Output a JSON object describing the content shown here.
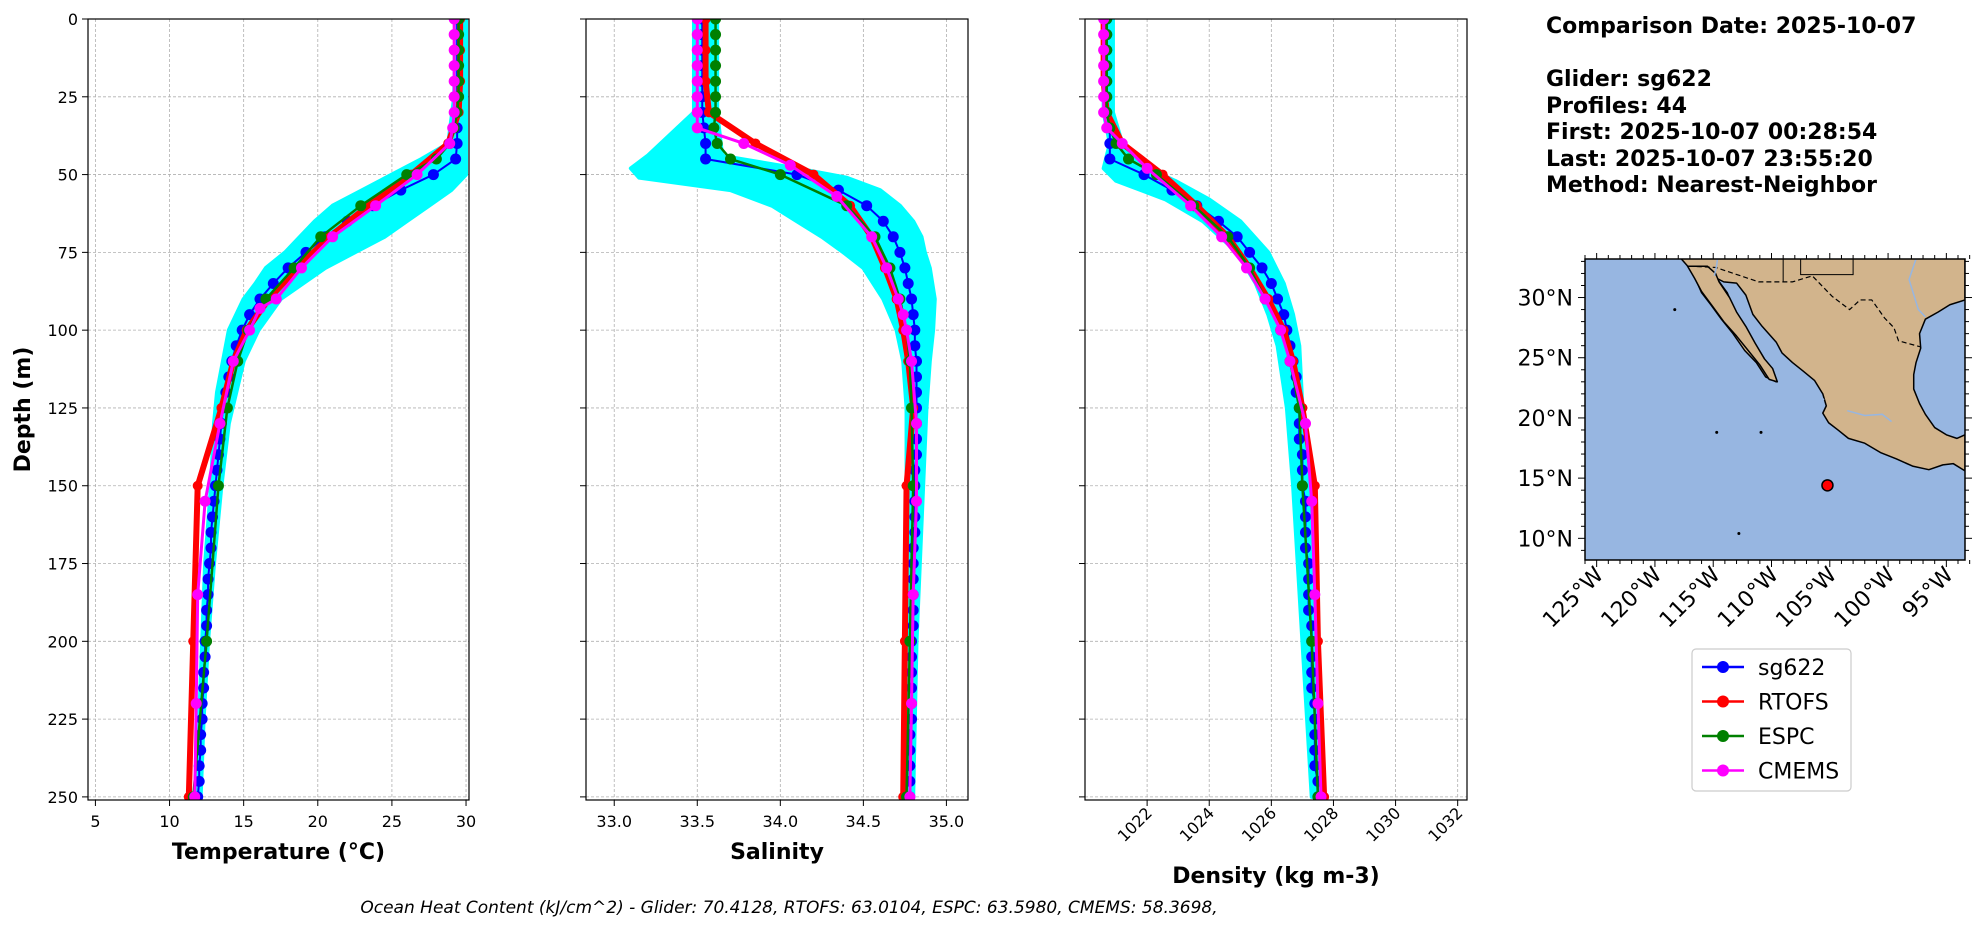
{
  "info": {
    "comparison_date": "Comparison Date: 2025-10-07",
    "glider": "Glider: sg622",
    "profiles": "Profiles: 44",
    "first": "First: 2025-10-07 00:28:54",
    "last": "Last: 2025-10-07 23:55:20",
    "method": "Method: Nearest-Neighbor"
  },
  "footer": "Ocean Heat Content (kJ/cm^2) - Glider: 70.4128,  RTOFS: 63.0104,  ESPC: 63.5980,  CMEMS: 58.3698,",
  "colors": {
    "glider_raw": "#00ffff",
    "sg622": "#0000ff",
    "RTOFS": "#ff0000",
    "ESPC": "#008000",
    "CMEMS": "#ff00ff",
    "ocean": "#97b6e1",
    "land": "#d2b48c"
  },
  "chart_data": [
    {
      "type": "line",
      "name": "temperature",
      "xlabel": "Temperature (°C)",
      "ylabel": "Depth (m)",
      "xlim": [
        4.5,
        30.2
      ],
      "ylim": [
        251,
        0
      ],
      "xticks": [
        5,
        10,
        15,
        20,
        25,
        30
      ],
      "yticks": [
        0,
        25,
        50,
        75,
        100,
        125,
        150,
        175,
        200,
        225,
        250
      ],
      "grid": true,
      "raw_band": {
        "depth": [
          0,
          25,
          40,
          45,
          50,
          55,
          60,
          65,
          70,
          75,
          80,
          85,
          90,
          100,
          110,
          120,
          130,
          150,
          175,
          200,
          225,
          250
        ],
        "xmin": [
          29.3,
          29.2,
          28.8,
          27.0,
          25.0,
          23.0,
          21.0,
          19.8,
          18.8,
          17.8,
          16.5,
          15.8,
          15.0,
          14.0,
          13.6,
          13.2,
          13.0,
          12.8,
          12.4,
          12.2,
          12.0,
          11.8
        ],
        "xmax": [
          30.0,
          30.0,
          30.0,
          30.0,
          30.0,
          29.0,
          27.5,
          26.0,
          24.5,
          22.5,
          20.5,
          19.0,
          17.5,
          16.0,
          15.0,
          14.5,
          14.0,
          13.5,
          13.0,
          12.6,
          12.3,
          12.1
        ]
      },
      "series": [
        {
          "name": "sg622",
          "depth": [
            0,
            5,
            10,
            15,
            20,
            25,
            30,
            35,
            40,
            45,
            50,
            55,
            60,
            65,
            70,
            75,
            80,
            85,
            90,
            95,
            100,
            105,
            110,
            115,
            120,
            125,
            130,
            135,
            140,
            145,
            150,
            155,
            160,
            165,
            170,
            175,
            180,
            185,
            190,
            195,
            200,
            205,
            210,
            215,
            220,
            225,
            230,
            235,
            240,
            245,
            250
          ],
          "values": [
            29.4,
            29.4,
            29.4,
            29.4,
            29.4,
            29.4,
            29.4,
            29.4,
            29.4,
            29.3,
            27.8,
            25.6,
            23.7,
            22.0,
            20.5,
            19.2,
            18.0,
            17.0,
            16.1,
            15.4,
            14.9,
            14.5,
            14.2,
            14.0,
            13.8,
            13.6,
            13.5,
            13.4,
            13.3,
            13.2,
            13.1,
            13.0,
            12.9,
            12.8,
            12.8,
            12.7,
            12.6,
            12.6,
            12.5,
            12.5,
            12.4,
            12.4,
            12.3,
            12.3,
            12.2,
            12.2,
            12.1,
            12.1,
            12.0,
            12.0,
            11.9
          ]
        },
        {
          "name": "RTOFS",
          "depth": [
            0,
            10,
            20,
            30,
            40,
            50,
            60,
            70,
            80,
            90,
            100,
            110,
            125,
            150,
            200,
            250
          ],
          "values": [
            29.6,
            29.6,
            29.6,
            29.5,
            28.8,
            26.3,
            23.4,
            20.8,
            18.6,
            16.7,
            15.2,
            14.3,
            13.5,
            11.9,
            11.6,
            11.3
          ]
        },
        {
          "name": "ESPC",
          "depth": [
            0,
            5,
            10,
            15,
            20,
            25,
            30,
            35,
            40,
            45,
            50,
            60,
            70,
            80,
            90,
            100,
            110,
            125,
            150,
            200,
            250
          ],
          "values": [
            29.5,
            29.5,
            29.5,
            29.5,
            29.5,
            29.5,
            29.4,
            29.2,
            28.9,
            28.0,
            26.0,
            22.9,
            20.2,
            18.4,
            16.5,
            15.3,
            14.6,
            13.9,
            13.3,
            12.5,
            11.6
          ]
        },
        {
          "name": "CMEMS",
          "depth": [
            0,
            5,
            10,
            15,
            20,
            25,
            30,
            35,
            40,
            50,
            60,
            70,
            80,
            90,
            93,
            100,
            110,
            130,
            155,
            185,
            220,
            250
          ],
          "values": [
            29.2,
            29.2,
            29.2,
            29.2,
            29.2,
            29.2,
            29.2,
            29.1,
            28.9,
            26.7,
            23.9,
            21.0,
            18.9,
            17.2,
            16.1,
            15.4,
            14.3,
            13.4,
            12.4,
            11.9,
            11.8,
            11.7
          ]
        }
      ]
    },
    {
      "type": "line",
      "name": "salinity",
      "xlabel": "Salinity",
      "xlim": [
        32.83,
        35.13
      ],
      "ylim": [
        251,
        0
      ],
      "xticks": [
        33.0,
        33.5,
        34.0,
        34.5,
        35.0
      ],
      "xticklabels": [
        "33.0",
        "33.5",
        "34.0",
        "34.5",
        "35.0"
      ],
      "yticks": [
        0,
        25,
        50,
        75,
        100,
        125,
        150,
        175,
        200,
        225,
        250
      ],
      "grid": true,
      "raw_band": {
        "depth": [
          0,
          30,
          44,
          48,
          51,
          55,
          60,
          65,
          70,
          75,
          80,
          90,
          100,
          110,
          125,
          150,
          200,
          250
        ],
        "xmin": [
          33.48,
          33.48,
          33.2,
          33.1,
          33.15,
          33.7,
          33.95,
          34.1,
          34.25,
          34.38,
          34.5,
          34.62,
          34.7,
          34.74,
          34.76,
          34.76,
          34.75,
          34.74
        ],
        "xmax": [
          33.62,
          33.62,
          33.65,
          34.1,
          34.4,
          34.6,
          34.72,
          34.8,
          34.85,
          34.87,
          34.9,
          34.93,
          34.92,
          34.9,
          34.88,
          34.86,
          34.82,
          34.8
        ]
      },
      "series": [
        {
          "name": "sg622",
          "depth": [
            0,
            5,
            10,
            15,
            20,
            25,
            30,
            35,
            40,
            45,
            50,
            55,
            60,
            65,
            70,
            75,
            80,
            85,
            90,
            95,
            100,
            105,
            110,
            115,
            120,
            125,
            130,
            135,
            140,
            145,
            150,
            155,
            160,
            165,
            170,
            175,
            180,
            185,
            190,
            195,
            200,
            205,
            210,
            215,
            220,
            225,
            230,
            235,
            240,
            245,
            250
          ],
          "values": [
            33.53,
            33.53,
            33.53,
            33.53,
            33.53,
            33.53,
            33.53,
            33.54,
            33.55,
            33.55,
            34.1,
            34.35,
            34.52,
            34.62,
            34.68,
            34.72,
            34.75,
            34.77,
            34.79,
            34.8,
            34.81,
            34.81,
            34.82,
            34.82,
            34.82,
            34.82,
            34.82,
            34.82,
            34.82,
            34.81,
            34.81,
            34.81,
            34.81,
            34.81,
            34.8,
            34.8,
            34.8,
            34.8,
            34.8,
            34.8,
            34.79,
            34.79,
            34.79,
            34.79,
            34.79,
            34.79,
            34.78,
            34.78,
            34.78,
            34.78,
            34.78
          ]
        },
        {
          "name": "RTOFS",
          "depth": [
            0,
            10,
            20,
            30,
            40,
            50,
            60,
            70,
            80,
            90,
            100,
            110,
            125,
            150,
            200,
            250
          ],
          "values": [
            33.55,
            33.55,
            33.55,
            33.57,
            33.85,
            34.2,
            34.42,
            34.55,
            34.63,
            34.7,
            34.74,
            34.77,
            34.8,
            34.76,
            34.75,
            34.74
          ]
        },
        {
          "name": "ESPC",
          "depth": [
            0,
            5,
            10,
            15,
            20,
            25,
            30,
            35,
            40,
            45,
            50,
            60,
            70,
            80,
            90,
            100,
            110,
            125,
            150,
            200,
            250
          ],
          "values": [
            33.61,
            33.61,
            33.61,
            33.61,
            33.61,
            33.61,
            33.61,
            33.6,
            33.62,
            33.7,
            34.0,
            34.4,
            34.57,
            34.66,
            34.72,
            34.76,
            34.78,
            34.79,
            34.8,
            34.78,
            34.76
          ]
        },
        {
          "name": "CMEMS",
          "depth": [
            0,
            5,
            10,
            15,
            20,
            25,
            30,
            35,
            40,
            47,
            57,
            70,
            80,
            90,
            95,
            100,
            110,
            130,
            155,
            185,
            220,
            250
          ],
          "values": [
            33.5,
            33.5,
            33.5,
            33.5,
            33.5,
            33.5,
            33.5,
            33.5,
            33.78,
            34.06,
            34.34,
            34.55,
            34.64,
            34.71,
            34.74,
            34.76,
            34.79,
            34.82,
            34.82,
            34.8,
            34.79,
            34.78
          ]
        }
      ]
    },
    {
      "type": "line",
      "name": "density",
      "xlabel": "Density (kg m-3)",
      "xlim": [
        1020.0,
        1032.3
      ],
      "ylim": [
        251,
        0
      ],
      "xticks": [
        1022,
        1024,
        1026,
        1028,
        1030,
        1032
      ],
      "yticks": [
        0,
        25,
        50,
        75,
        100,
        125,
        150,
        175,
        200,
        225,
        250
      ],
      "grid": true,
      "raw_band": {
        "depth": [
          0,
          30,
          40,
          48,
          52,
          58,
          65,
          75,
          85,
          95,
          105,
          125,
          150,
          200,
          250
        ],
        "xmin": [
          1020.6,
          1020.6,
          1020.8,
          1020.6,
          1021.0,
          1022.6,
          1023.8,
          1024.9,
          1025.5,
          1025.9,
          1026.2,
          1026.5,
          1026.7,
          1027.0,
          1027.3
        ],
        "xmax": [
          1020.9,
          1020.9,
          1021.2,
          1022.0,
          1022.9,
          1024.0,
          1025.0,
          1025.9,
          1026.4,
          1026.7,
          1026.9,
          1027.0,
          1027.2,
          1027.4,
          1027.6
        ]
      },
      "series": [
        {
          "name": "sg622",
          "depth": [
            0,
            5,
            10,
            15,
            20,
            25,
            30,
            35,
            40,
            45,
            50,
            55,
            60,
            65,
            70,
            75,
            80,
            85,
            90,
            95,
            100,
            105,
            110,
            115,
            120,
            125,
            130,
            135,
            140,
            145,
            150,
            155,
            160,
            165,
            170,
            175,
            180,
            185,
            190,
            195,
            200,
            205,
            210,
            215,
            220,
            225,
            230,
            235,
            240,
            245,
            250
          ],
          "values": [
            1020.7,
            1020.7,
            1020.7,
            1020.7,
            1020.7,
            1020.7,
            1020.7,
            1020.8,
            1020.8,
            1020.8,
            1021.9,
            1022.8,
            1023.6,
            1024.3,
            1024.9,
            1025.3,
            1025.7,
            1026.0,
            1026.2,
            1026.4,
            1026.5,
            1026.6,
            1026.7,
            1026.8,
            1026.8,
            1026.9,
            1026.9,
            1026.9,
            1027.0,
            1027.0,
            1027.0,
            1027.1,
            1027.1,
            1027.1,
            1027.1,
            1027.2,
            1027.2,
            1027.2,
            1027.2,
            1027.3,
            1027.3,
            1027.3,
            1027.3,
            1027.3,
            1027.4,
            1027.4,
            1027.4,
            1027.4,
            1027.4,
            1027.5,
            1027.5
          ]
        },
        {
          "name": "RTOFS",
          "depth": [
            0,
            10,
            20,
            30,
            40,
            50,
            60,
            70,
            80,
            90,
            100,
            110,
            125,
            150,
            200,
            250
          ],
          "values": [
            1020.6,
            1020.6,
            1020.6,
            1020.7,
            1021.2,
            1022.5,
            1023.6,
            1024.6,
            1025.3,
            1025.9,
            1026.4,
            1026.7,
            1027.0,
            1027.4,
            1027.5,
            1027.7
          ]
        },
        {
          "name": "ESPC",
          "depth": [
            0,
            5,
            10,
            15,
            20,
            25,
            30,
            35,
            40,
            45,
            50,
            60,
            70,
            80,
            90,
            100,
            110,
            125,
            150,
            200,
            250
          ],
          "values": [
            1020.7,
            1020.7,
            1020.7,
            1020.7,
            1020.7,
            1020.7,
            1020.7,
            1020.8,
            1021.0,
            1021.4,
            1022.3,
            1023.5,
            1024.6,
            1025.3,
            1025.8,
            1026.3,
            1026.6,
            1026.9,
            1027.0,
            1027.3,
            1027.5
          ]
        },
        {
          "name": "CMEMS",
          "depth": [
            0,
            5,
            10,
            15,
            20,
            25,
            30,
            35,
            40,
            48,
            60,
            70,
            80,
            90,
            100,
            110,
            130,
            155,
            185,
            220,
            250
          ],
          "values": [
            1020.6,
            1020.6,
            1020.6,
            1020.6,
            1020.6,
            1020.6,
            1020.6,
            1020.7,
            1021.2,
            1022.0,
            1023.4,
            1024.4,
            1025.2,
            1025.8,
            1026.3,
            1026.6,
            1027.1,
            1027.3,
            1027.4,
            1027.5,
            1027.6
          ]
        }
      ]
    },
    {
      "type": "map",
      "name": "location",
      "lon_range": [
        -126.0,
        -93.4
      ],
      "lat_range": [
        8.2,
        33.2
      ],
      "xticklabels": [
        "125°W",
        "120°W",
        "115°W",
        "110°W",
        "105°W",
        "100°W",
        "95°W"
      ],
      "xtick_lons": [
        -125,
        -120,
        -115,
        -110,
        -105,
        -100,
        -95
      ],
      "yticklabels": [
        "10°N",
        "15°N",
        "20°N",
        "25°N",
        "30°N"
      ],
      "ytick_lats": [
        10,
        15,
        20,
        25,
        30
      ],
      "glider_location": {
        "lon": -105.2,
        "lat": 14.4
      }
    }
  ],
  "legend": {
    "entries": [
      "sg622",
      "RTOFS",
      "ESPC",
      "CMEMS"
    ]
  }
}
